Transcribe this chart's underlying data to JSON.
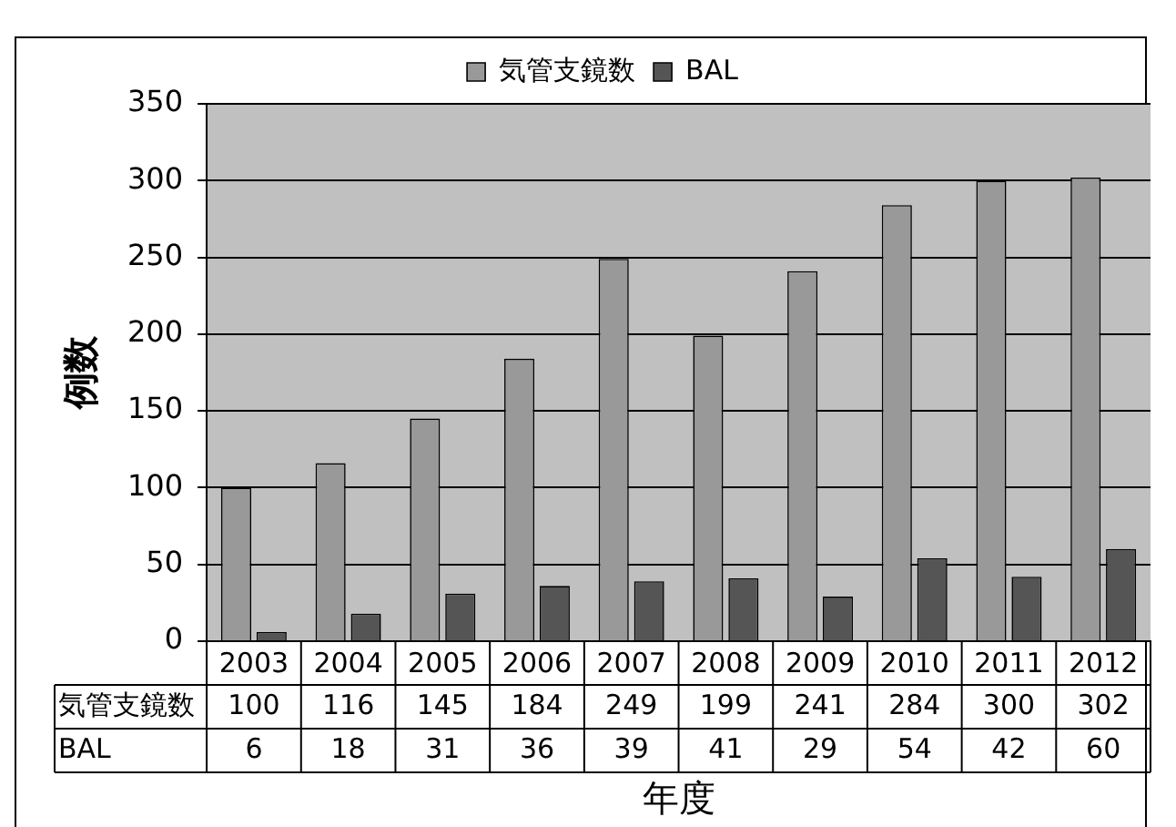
{
  "chart_data": {
    "type": "bar",
    "xlabel": "年度",
    "ylabel": "例数",
    "categories": [
      "2003",
      "2004",
      "2005",
      "2006",
      "2007",
      "2008",
      "2009",
      "2010",
      "2011",
      "2012"
    ],
    "series": [
      {
        "name": "気管支鏡数",
        "color": "#999999",
        "values": [
          100,
          116,
          145,
          184,
          249,
          199,
          241,
          284,
          300,
          302
        ]
      },
      {
        "name": "BAL",
        "color": "#555555",
        "values": [
          6,
          18,
          31,
          36,
          39,
          41,
          29,
          54,
          42,
          60
        ]
      }
    ],
    "ylim": [
      0,
      350
    ],
    "yticks": [
      0,
      50,
      100,
      150,
      200,
      250,
      300,
      350
    ],
    "grid": "y",
    "legend": "top",
    "data_labels": true
  }
}
